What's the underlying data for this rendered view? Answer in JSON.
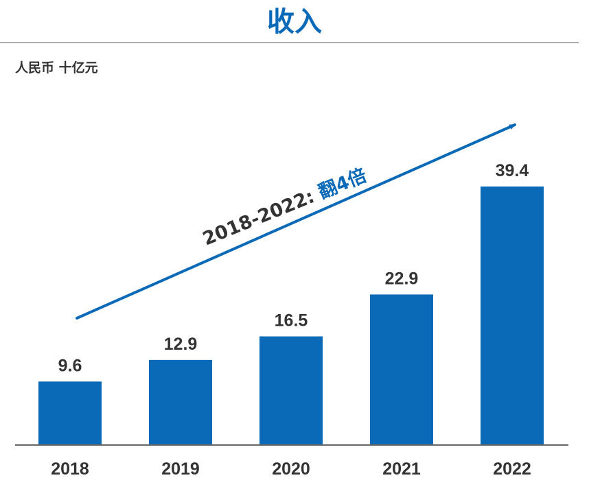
{
  "title": "收入",
  "unit_label": "人民币 十亿元",
  "annotation": {
    "prefix": "2018-2022: ",
    "highlight": "翻4倍",
    "highlight_color": "#0a6ab8",
    "prefix_color": "#333333"
  },
  "colors": {
    "bar": "#0a6ab8",
    "axis": "#333333",
    "arrow": "#0a6ab8"
  },
  "chart_data": {
    "type": "bar",
    "title": "收入",
    "ylabel": "人民币 十亿元",
    "xlabel": "",
    "categories": [
      "2018",
      "2019",
      "2020",
      "2021",
      "2022"
    ],
    "values": [
      9.6,
      12.9,
      16.5,
      22.9,
      39.4
    ],
    "value_labels": [
      "9.6",
      "12.9",
      "16.5",
      "22.9",
      "39.4"
    ],
    "ylim": [
      0,
      39.4
    ],
    "grid": false,
    "legend": "none"
  }
}
